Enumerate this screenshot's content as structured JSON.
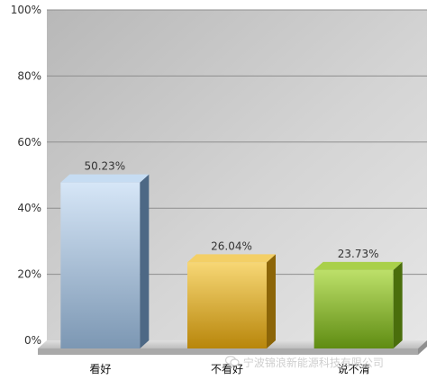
{
  "chart_data": {
    "type": "bar",
    "title": "",
    "xlabel": "",
    "ylabel": "",
    "categories": [
      "看好",
      "不看好",
      "说不清"
    ],
    "values": [
      50.23,
      26.04,
      23.73
    ],
    "data_labels": [
      "50.23%",
      "26.04%",
      "23.73%"
    ],
    "ylim": [
      0,
      100
    ],
    "yticks": [
      0,
      20,
      40,
      60,
      80,
      100
    ],
    "ytick_labels": [
      "0%",
      "20%",
      "40%",
      "60%",
      "80%",
      "100%"
    ],
    "grid": true,
    "legend": "none",
    "bar_style": "3d",
    "colors": [
      "#9db8d6",
      "#e8b52c",
      "#8bb832"
    ]
  },
  "watermark": {
    "text": "宁波锦浪新能源科技有限公司",
    "icon": "wechat-icon"
  }
}
